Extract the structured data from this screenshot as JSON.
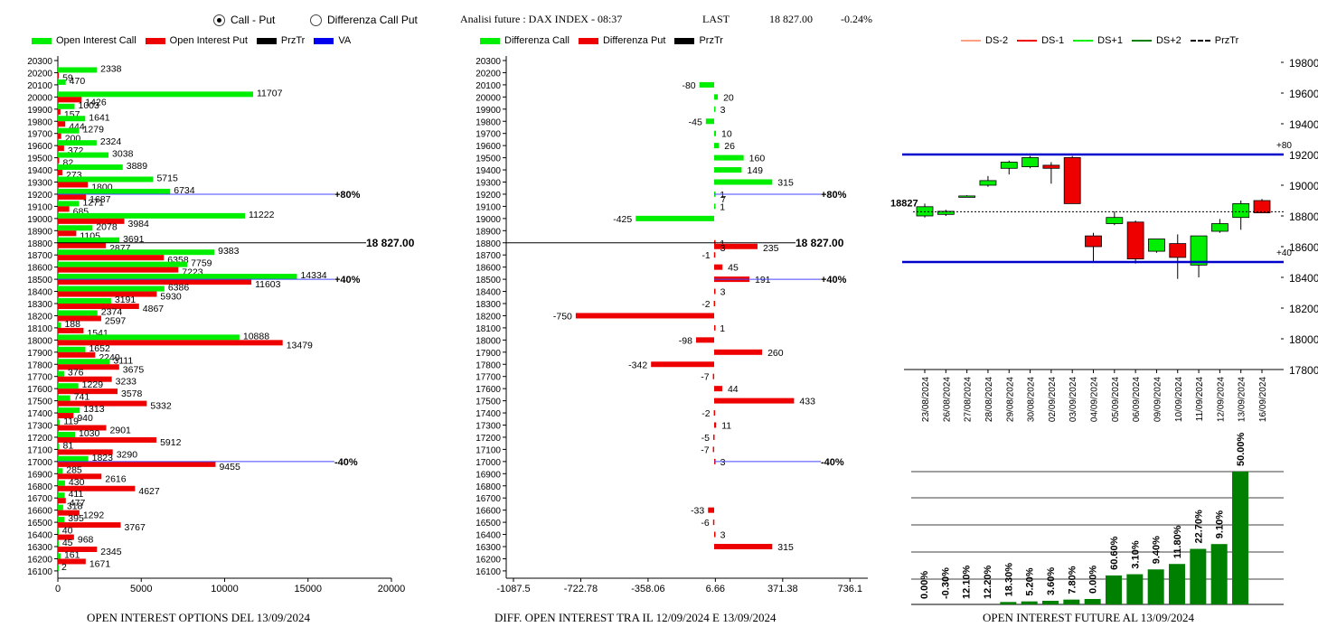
{
  "header": {
    "radio_call_put": "Call - Put",
    "radio_diff": "Differenza Call Put",
    "analysis_label": "Analisi future : DAX INDEX - 08:37",
    "last_label": "LAST",
    "last_value": "18 827.00",
    "last_change": "-0.24%"
  },
  "legend_left": [
    "Open Interest Call",
    "Open Interest Put",
    "PrzTr",
    "VA"
  ],
  "legend_mid": [
    "Differenza Call",
    "Differenza Put",
    "PrzTr"
  ],
  "legend_right": [
    "DS-2",
    "DS-1",
    "DS+1",
    "DS+2",
    "PrzTr"
  ],
  "colors": {
    "call": "#00ee00",
    "put": "#ee0000",
    "green_dark": "#008000",
    "blue": "#0000cc",
    "va_line": "#4444ff"
  },
  "captions": {
    "left": "OPEN INTEREST OPTIONS DEL 13/09/2024",
    "mid": "DIFF. OPEN INTEREST TRA IL 12/09/2024 E 13/09/2024",
    "right": "OPEN INTEREST FUTURE AL 13/09/2024"
  },
  "chart_data": [
    {
      "type": "bar",
      "title": "OPEN INTEREST OPTIONS DEL 13/09/2024",
      "orientation": "horizontal",
      "strikes": [
        20300,
        20200,
        20100,
        20000,
        19900,
        19800,
        19700,
        19600,
        19500,
        19400,
        19300,
        19200,
        19100,
        19000,
        18900,
        18800,
        18700,
        18600,
        18500,
        18400,
        18300,
        18200,
        18100,
        18000,
        17900,
        17800,
        17700,
        17600,
        17500,
        17400,
        17300,
        17200,
        17100,
        17000,
        16900,
        16800,
        16700,
        16600,
        16500,
        16400,
        16300,
        16200,
        16100
      ],
      "series": [
        {
          "name": "Open Interest Call",
          "values": [
            null,
            2338,
            470,
            11707,
            1003,
            1641,
            1279,
            2324,
            3038,
            3889,
            5715,
            6734,
            1271,
            11222,
            2078,
            3691,
            9383,
            7759,
            14334,
            6386,
            3191,
            2374,
            188,
            10888,
            1652,
            3111,
            376,
            1229,
            741,
            1313,
            119,
            1030,
            81,
            1823,
            285,
            430,
            411,
            318,
            395,
            40,
            45,
            161,
            2
          ]
        },
        {
          "name": "Open Interest Put",
          "values": [
            null,
            59,
            null,
            1426,
            157,
            444,
            200,
            372,
            82,
            273,
            1800,
            1687,
            685,
            3984,
            1105,
            2877,
            6358,
            7223,
            11603,
            5930,
            4867,
            2597,
            1541,
            13479,
            2240,
            3675,
            3233,
            3578,
            5332,
            940,
            2901,
            5912,
            3290,
            9455,
            2616,
            4627,
            477,
            1292,
            3767,
            968,
            2345,
            1671,
            null
          ]
        }
      ],
      "xticks": [
        "0",
        "5000",
        "10000",
        "15000",
        "20000"
      ],
      "xlim": [
        0,
        20000
      ],
      "levels": [
        {
          "strike": 19200,
          "label": "80%"
        },
        {
          "strike": 18800,
          "label": "18 827.00"
        },
        {
          "strike": 18500,
          "label": "40%"
        },
        {
          "strike": 17000,
          "label": "-40%"
        }
      ]
    },
    {
      "type": "bar",
      "title": "DIFF. OPEN INTEREST TRA IL 12/09/2024 E 13/09/2024",
      "orientation": "horizontal",
      "strikes": [
        20300,
        20200,
        20100,
        20000,
        19900,
        19800,
        19700,
        19600,
        19500,
        19400,
        19300,
        19200,
        19100,
        19000,
        18900,
        18800,
        18700,
        18600,
        18500,
        18400,
        18300,
        18200,
        18100,
        18000,
        17900,
        17800,
        17700,
        17600,
        17500,
        17400,
        17300,
        17200,
        17100,
        17000,
        16900,
        16800,
        16700,
        16600,
        16500,
        16400,
        16300,
        16200,
        16100
      ],
      "values": [
        null,
        null,
        -80,
        20,
        3,
        -45,
        10,
        26,
        160,
        149,
        315,
        1,
        1,
        -425,
        null,
        1,
        -1,
        45,
        191,
        3,
        -2,
        -750,
        1,
        -98,
        260,
        -342,
        -7,
        44,
        433,
        -2,
        11,
        -5,
        -7,
        3,
        null,
        null,
        null,
        -33,
        -6,
        3,
        315,
        null,
        null
      ],
      "extra_labels": [
        {
          "strike": 19200,
          "text": "7"
        },
        {
          "strike": 18800,
          "text": "235"
        },
        {
          "strike": 18800,
          "text": "3"
        }
      ],
      "xticks": [
        "-1087.5",
        "-722.78",
        "-358.06",
        "6.66",
        "371.38",
        "736.1"
      ],
      "levels": [
        {
          "strike": 19200,
          "label": "80%"
        },
        {
          "strike": 18800,
          "label": "18 827.00"
        },
        {
          "strike": 18500,
          "label": "40%"
        },
        {
          "strike": 17000,
          "label": "-40%"
        }
      ]
    },
    {
      "type": "candlestick",
      "dates": [
        "23/08/2024",
        "26/08/2024",
        "27/08/2024",
        "28/08/2024",
        "29/08/2024",
        "30/08/2024",
        "02/09/2024",
        "03/09/2024",
        "04/09/2024",
        "05/09/2024",
        "06/09/2024",
        "09/09/2024",
        "10/09/2024",
        "11/09/2024",
        "12/09/2024",
        "13/09/2024",
        "16/09/2024"
      ],
      "ohlc": [
        [
          18800,
          18880,
          18790,
          18860
        ],
        [
          18810,
          18840,
          18800,
          18830
        ],
        [
          18930,
          18935,
          18925,
          18930
        ],
        [
          19000,
          19060,
          18990,
          19030
        ],
        [
          19110,
          19160,
          19070,
          19150
        ],
        [
          19120,
          19190,
          19110,
          19180
        ],
        [
          19130,
          19150,
          19010,
          19110
        ],
        [
          19180,
          19190,
          18880,
          18880
        ],
        [
          18670,
          18690,
          18500,
          18600
        ],
        [
          18750,
          18830,
          18740,
          18790
        ],
        [
          18760,
          18770,
          18490,
          18520
        ],
        [
          18570,
          18650,
          18560,
          18650
        ],
        [
          18620,
          18680,
          18390,
          18530
        ],
        [
          18480,
          18670,
          18400,
          18670
        ],
        [
          18700,
          18780,
          18690,
          18750
        ],
        [
          18790,
          18900,
          18710,
          18880
        ],
        [
          18900,
          18910,
          18820,
          18820
        ]
      ],
      "price_axis": [
        "19800",
        "19600",
        "19400",
        "19200",
        "19000",
        "18800",
        "18600",
        "18400",
        "18200",
        "18000",
        "17800"
      ],
      "ylim": [
        17800,
        19800
      ],
      "levels": [
        {
          "value": 19200,
          "label": "+80"
        },
        {
          "value": 18500,
          "label": "+40"
        }
      ],
      "prztr": 18827,
      "prztr_label": "18827"
    },
    {
      "type": "bar",
      "title": "OPEN INTEREST FUTURE AL 13/09/2024",
      "values": [
        0.0,
        -0.3,
        12.1,
        12.2,
        18.3,
        5.2,
        3.6,
        7.8,
        0.0,
        60.6,
        3.1,
        9.4,
        11.8,
        22.7,
        9.1,
        50.0
      ],
      "labels": [
        "0.00%",
        "-0.30%",
        "12.10%",
        "12.20%",
        "18.30%",
        "5.20%",
        "3.60%",
        "7.80%",
        "0.00%",
        "60.60%",
        "3.10%",
        "9.40%",
        "11.80%",
        "22.70%",
        "9.10%",
        "50.00%"
      ],
      "open_interest": [
        0,
        0,
        0,
        0,
        0.4,
        0.5,
        0.6,
        0.8,
        0.9,
        4.8,
        5.0,
        5.8,
        6.7,
        9.2,
        10.0,
        22.0
      ]
    }
  ]
}
